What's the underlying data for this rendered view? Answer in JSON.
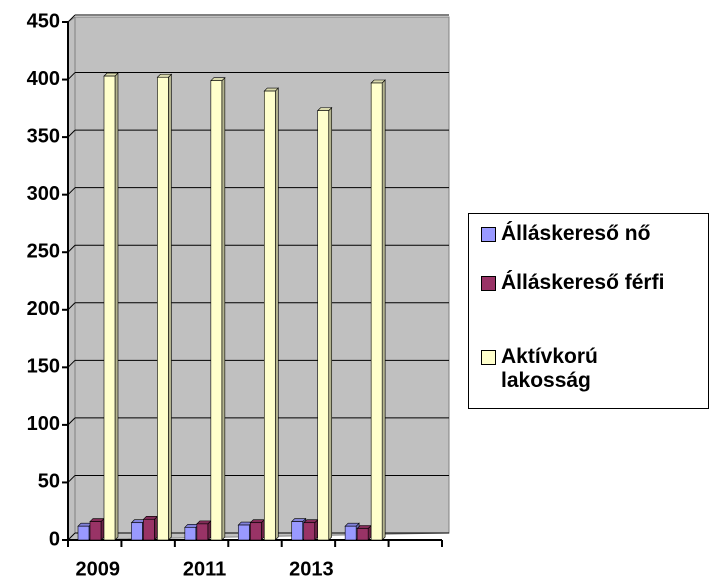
{
  "chart_data": {
    "type": "bar",
    "categories": [
      "2009",
      null,
      "2011",
      null,
      "2013",
      null,
      null
    ],
    "series": [
      {
        "name": "Álláskereső nő",
        "color": "#9999ff",
        "values": [
          12,
          15,
          11,
          13,
          16,
          12,
          null
        ]
      },
      {
        "name": "Álláskereső férfi",
        "color": "#993366",
        "values": [
          16,
          18,
          14,
          15,
          15,
          10,
          null
        ]
      },
      {
        "name": "Aktívkorú lakosság",
        "color": "#ffffcc",
        "values": [
          403,
          402,
          399,
          390,
          373,
          397,
          null
        ]
      }
    ],
    "ylim": [
      0,
      450
    ],
    "yticks": [
      0,
      50,
      100,
      150,
      200,
      250,
      300,
      350,
      400,
      450
    ],
    "grid": true,
    "legend": "right"
  }
}
